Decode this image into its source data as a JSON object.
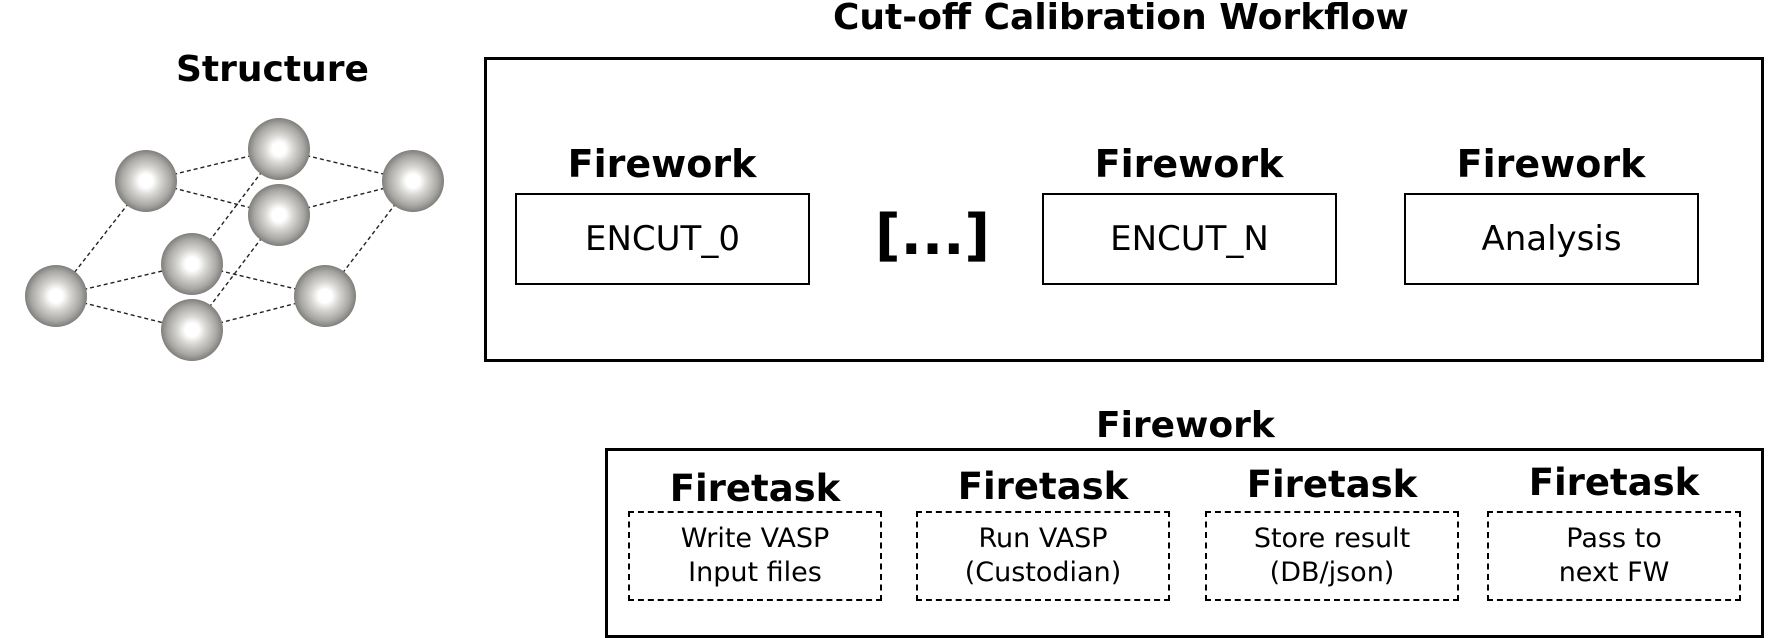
{
  "structure": {
    "title": "Structure"
  },
  "workflow": {
    "title": "Cut-off Calibration Workflow",
    "ellipsis": "[...]",
    "fireworks": [
      {
        "label": "Firework",
        "text": "ENCUT_0"
      },
      {
        "label": "Firework",
        "text": "ENCUT_N"
      },
      {
        "label": "Firework",
        "text": "Analysis"
      }
    ]
  },
  "firework_detail": {
    "title": "Firework",
    "firetasks": [
      {
        "label": "Firetask",
        "line1": "Write VASP",
        "line2": "Input files"
      },
      {
        "label": "Firetask",
        "line1": "Run VASP",
        "line2": "(Custodian)"
      },
      {
        "label": "Firetask",
        "line1": "Store result",
        "line2": "(DB/json)"
      },
      {
        "label": "Firetask",
        "line1": "Pass to",
        "line2": "next FW"
      }
    ]
  }
}
